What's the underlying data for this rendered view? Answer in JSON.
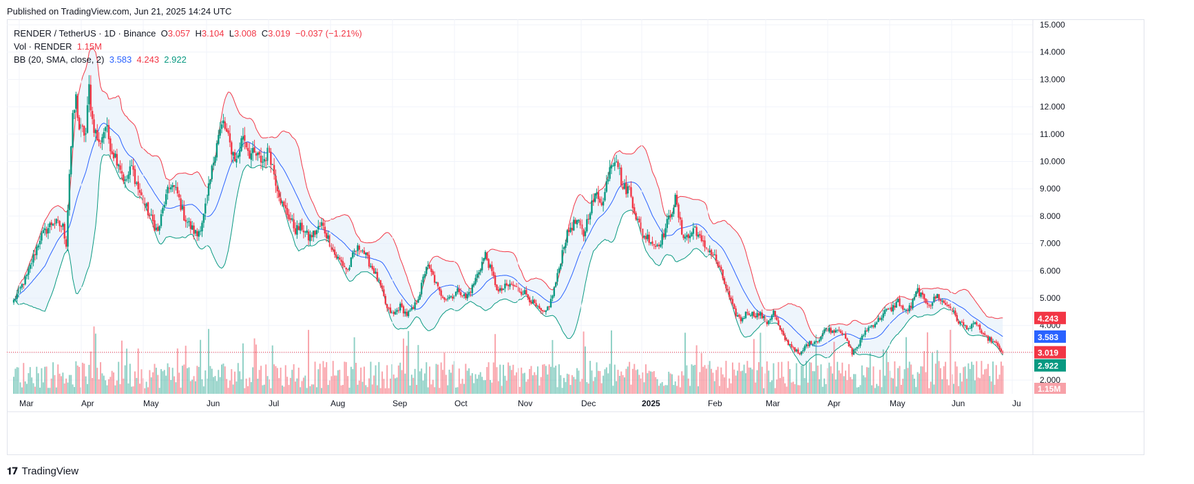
{
  "published": "Published on TradingView.com, Jun 21, 2025 14:24 UTC",
  "footer_brand": "TradingView",
  "legend": {
    "symbol": "RENDER / TetherUS · 1D · Binance",
    "o_label": "O",
    "o": "3.057",
    "h_label": "H",
    "h": "3.104",
    "l_label": "L",
    "l": "3.008",
    "c_label": "C",
    "c": "3.019",
    "change": "−0.037 (−1.21%)",
    "vol_label": "Vol · RENDER",
    "vol": "1.15M",
    "bb_label": "BB (20, SMA, close, 2)",
    "bb_basis": "3.583",
    "bb_upper": "4.243",
    "bb_lower": "2.922"
  },
  "colors": {
    "up": "#089981",
    "down": "#f23645",
    "upper_band": "#f23645",
    "basis": "#2962ff",
    "lower_band": "#089981",
    "band_fill": "#e3effa"
  },
  "chart_data": {
    "type": "candlestick",
    "x_ticks": [
      "Mar",
      "Apr",
      "May",
      "Jun",
      "Jul",
      "Aug",
      "Sep",
      "Oct",
      "Nov",
      "Dec",
      "2025",
      "Feb",
      "Mar",
      "Apr",
      "May",
      "Jun",
      "Ju"
    ],
    "y_ticks": [
      "2.000",
      "3.000",
      "4.000",
      "5.000",
      "6.000",
      "7.000",
      "8.000",
      "9.000",
      "10.000",
      "11.000",
      "12.000",
      "13.000",
      "14.000",
      "15.000"
    ],
    "ylim": [
      1.5,
      15.2
    ],
    "price_labels": {
      "upper": "4.243",
      "basis": "3.583",
      "last": "3.019",
      "lower": "2.922",
      "volume": "1.15M"
    },
    "close_keypoints": [
      [
        0,
        4.9
      ],
      [
        8,
        5.8
      ],
      [
        16,
        7.2
      ],
      [
        24,
        7.8
      ],
      [
        30,
        7.6
      ],
      [
        32,
        7.0
      ],
      [
        34,
        9.6
      ],
      [
        36,
        11.5
      ],
      [
        38,
        12.3
      ],
      [
        40,
        11.2
      ],
      [
        44,
        11.0
      ],
      [
        46,
        12.7
      ],
      [
        48,
        11.5
      ],
      [
        52,
        10.6
      ],
      [
        56,
        11.3
      ],
      [
        60,
        10.4
      ],
      [
        64,
        10.0
      ],
      [
        68,
        9.2
      ],
      [
        72,
        9.8
      ],
      [
        76,
        9.0
      ],
      [
        80,
        8.4
      ],
      [
        84,
        7.9
      ],
      [
        88,
        7.4
      ],
      [
        92,
        8.5
      ],
      [
        96,
        9.2
      ],
      [
        100,
        8.8
      ],
      [
        104,
        8.0
      ],
      [
        108,
        7.6
      ],
      [
        112,
        7.3
      ],
      [
        116,
        8.0
      ],
      [
        120,
        9.3
      ],
      [
        124,
        10.8
      ],
      [
        128,
        11.4
      ],
      [
        132,
        10.6
      ],
      [
        136,
        10.0
      ],
      [
        140,
        11.0
      ],
      [
        144,
        10.3
      ],
      [
        148,
        10.2
      ],
      [
        152,
        10.0
      ],
      [
        156,
        10.4
      ],
      [
        160,
        9.3
      ],
      [
        164,
        8.4
      ],
      [
        168,
        8.0
      ],
      [
        172,
        7.5
      ],
      [
        176,
        7.6
      ],
      [
        180,
        7.2
      ],
      [
        184,
        7.4
      ],
      [
        188,
        7.7
      ],
      [
        192,
        7.2
      ],
      [
        196,
        6.6
      ],
      [
        200,
        6.3
      ],
      [
        204,
        6.0
      ],
      [
        208,
        6.7
      ],
      [
        212,
        6.9
      ],
      [
        216,
        6.4
      ],
      [
        220,
        6.0
      ],
      [
        224,
        5.4
      ],
      [
        228,
        4.6
      ],
      [
        232,
        4.4
      ],
      [
        236,
        4.7
      ],
      [
        240,
        4.4
      ],
      [
        244,
        4.6
      ],
      [
        248,
        5.2
      ],
      [
        252,
        6.2
      ],
      [
        256,
        5.8
      ],
      [
        260,
        5.2
      ],
      [
        264,
        5.0
      ],
      [
        268,
        5.1
      ],
      [
        272,
        5.3
      ],
      [
        276,
        5.0
      ],
      [
        280,
        5.4
      ],
      [
        284,
        6.0
      ],
      [
        288,
        6.6
      ],
      [
        292,
        5.9
      ],
      [
        296,
        5.2
      ],
      [
        300,
        5.4
      ],
      [
        304,
        5.5
      ],
      [
        308,
        5.3
      ],
      [
        312,
        5.2
      ],
      [
        316,
        4.9
      ],
      [
        320,
        4.6
      ],
      [
        324,
        4.4
      ],
      [
        328,
        4.9
      ],
      [
        332,
        5.8
      ],
      [
        336,
        7.0
      ],
      [
        340,
        7.6
      ],
      [
        344,
        7.8
      ],
      [
        348,
        7.3
      ],
      [
        352,
        8.3
      ],
      [
        356,
        8.8
      ],
      [
        360,
        8.5
      ],
      [
        364,
        9.9
      ],
      [
        368,
        10.2
      ],
      [
        372,
        9.0
      ],
      [
        376,
        9.0
      ],
      [
        380,
        8.0
      ],
      [
        384,
        7.3
      ],
      [
        388,
        7.2
      ],
      [
        392,
        6.9
      ],
      [
        396,
        7.2
      ],
      [
        400,
        7.9
      ],
      [
        404,
        8.6
      ],
      [
        408,
        7.4
      ],
      [
        412,
        7.2
      ],
      [
        416,
        7.6
      ],
      [
        420,
        7.0
      ],
      [
        424,
        6.8
      ],
      [
        428,
        6.5
      ],
      [
        432,
        5.9
      ],
      [
        436,
        5.2
      ],
      [
        440,
        4.5
      ],
      [
        444,
        4.2
      ],
      [
        448,
        4.5
      ],
      [
        452,
        4.4
      ],
      [
        456,
        4.4
      ],
      [
        460,
        4.1
      ],
      [
        464,
        4.5
      ],
      [
        468,
        3.8
      ],
      [
        472,
        3.4
      ],
      [
        476,
        3.2
      ],
      [
        480,
        2.9
      ],
      [
        484,
        3.3
      ],
      [
        488,
        3.4
      ],
      [
        492,
        3.5
      ],
      [
        496,
        3.9
      ],
      [
        500,
        3.8
      ],
      [
        504,
        3.9
      ],
      [
        508,
        3.5
      ],
      [
        512,
        3.0
      ],
      [
        516,
        3.3
      ],
      [
        520,
        3.8
      ],
      [
        524,
        4.0
      ],
      [
        528,
        4.2
      ],
      [
        532,
        4.5
      ],
      [
        536,
        4.6
      ],
      [
        540,
        4.9
      ],
      [
        544,
        4.5
      ],
      [
        548,
        4.7
      ],
      [
        552,
        5.3
      ],
      [
        556,
        4.9
      ],
      [
        560,
        4.8
      ],
      [
        564,
        5.1
      ],
      [
        568,
        4.8
      ],
      [
        572,
        4.7
      ],
      [
        576,
        4.2
      ],
      [
        580,
        4.0
      ],
      [
        584,
        3.9
      ],
      [
        588,
        4.1
      ],
      [
        592,
        3.6
      ],
      [
        596,
        3.5
      ],
      [
        600,
        3.3
      ],
      [
        604,
        3.0
      ]
    ],
    "last_close": 3.019
  }
}
